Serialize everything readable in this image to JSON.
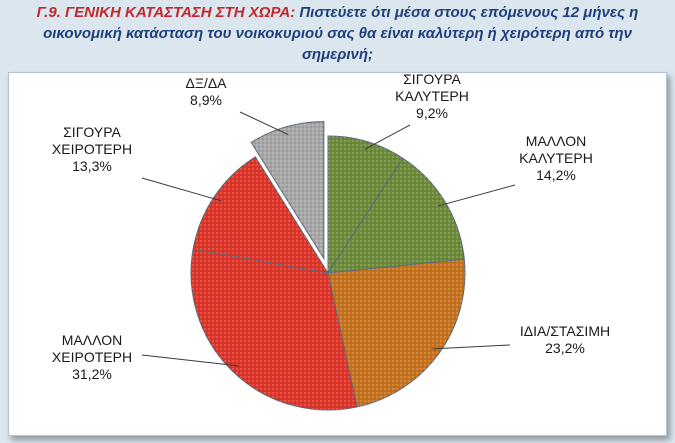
{
  "title": {
    "prefix": "Γ.9. ΓΕΝΙΚΗ ΚΑΤΑΣΤΑΣΗ ΣΤΗ ΧΩΡΑ:",
    "line1_rest": "Πιστεύετε ότι μέσα στους επόμενους 12 μήνες η",
    "line2": "οικονομική κατάσταση του νοικοκυριού σας θα είναι καλύτερη ή χειρότερη από την",
    "line3": "σημερινή;"
  },
  "chart_data": {
    "type": "pie",
    "slices": [
      {
        "label_lines": [
          "ΣΙΓΟΥΡΑ",
          "ΚΑΛΥΤΕΡΗ"
        ],
        "value_label": "9,2%",
        "value": 9.2,
        "color": "#6e8c3a",
        "exploded": false
      },
      {
        "label_lines": [
          "ΜΑΛΛΟΝ",
          "ΚΑΛΥΤΕΡΗ"
        ],
        "value_label": "14,2%",
        "value": 14.2,
        "color": "#6e8c3a",
        "exploded": false
      },
      {
        "label_lines": [
          "ΙΔΙΑ/ΣΤΑΣΙΜΗ"
        ],
        "value_label": "23,2%",
        "value": 23.2,
        "color": "#c8741e",
        "exploded": false
      },
      {
        "label_lines": [
          "ΜΑΛΛΟΝ",
          "ΧΕΙΡΟΤΕΡΗ"
        ],
        "value_label": "31,2%",
        "value": 31.2,
        "color": "#e0362a",
        "exploded": false
      },
      {
        "label_lines": [
          "ΣΙΓΟΥΡΑ",
          "ΧΕΙΡΟΤΕΡΗ"
        ],
        "value_label": "13,3%",
        "value": 13.3,
        "color": "#e0362a",
        "exploded": false
      },
      {
        "label_lines": [
          "ΔΞ/ΔΑ"
        ],
        "value_label": "8,9%",
        "value": 8.9,
        "color": "#a8a8a8",
        "exploded": true
      }
    ]
  }
}
